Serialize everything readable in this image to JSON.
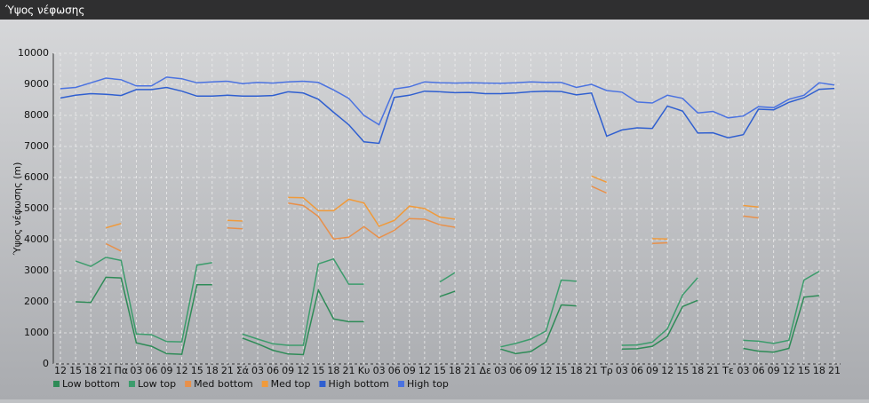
{
  "chart_data": {
    "type": "line",
    "title": "Ύψος νέφωσης",
    "y_label": "Ύψος νέφωσης (m)",
    "categories": [
      "12",
      "15",
      "18",
      "21",
      "Πα",
      "03",
      "06",
      "09",
      "12",
      "15",
      "18",
      "21",
      "Σά",
      "03",
      "06",
      "09",
      "12",
      "15",
      "18",
      "21",
      "Κυ",
      "03",
      "06",
      "09",
      "12",
      "15",
      "18",
      "21",
      "Δε",
      "03",
      "06",
      "09",
      "12",
      "15",
      "18",
      "21",
      "Τρ",
      "03",
      "06",
      "09",
      "12",
      "15",
      "18",
      "21",
      "Τε",
      "03",
      "06",
      "09",
      "12",
      "15",
      "18",
      "21"
    ],
    "ylim": [
      0,
      10000
    ],
    "yticks": [
      0,
      1000,
      2000,
      3000,
      4000,
      5000,
      6000,
      7000,
      8000,
      9000,
      10000
    ],
    "grid": true,
    "series": [
      {
        "name": "Low bottom",
        "color": "#2e8b57",
        "values": [
          null,
          2000,
          1980,
          2790,
          2770,
          680,
          570,
          330,
          310,
          2550,
          2550,
          null,
          830,
          650,
          440,
          320,
          300,
          2380,
          1450,
          1360,
          1360,
          null,
          null,
          null,
          null,
          2170,
          2340,
          null,
          null,
          480,
          330,
          400,
          710,
          1900,
          1870,
          null,
          null,
          480,
          490,
          570,
          890,
          1850,
          2050,
          null,
          null,
          500,
          410,
          380,
          500,
          2150,
          2200,
          null
        ]
      },
      {
        "name": "Low top",
        "color": "#3c9c6c",
        "values": [
          null,
          3310,
          3140,
          3430,
          3330,
          970,
          940,
          720,
          710,
          3180,
          3260,
          null,
          960,
          800,
          650,
          600,
          600,
          3220,
          3380,
          2570,
          2570,
          null,
          null,
          null,
          null,
          2640,
          2940,
          null,
          null,
          550,
          660,
          800,
          1060,
          2700,
          2660,
          null,
          null,
          600,
          610,
          700,
          1130,
          2220,
          2780,
          null,
          null,
          760,
          730,
          660,
          760,
          2700,
          2980,
          null
        ]
      },
      {
        "name": "Med bottom",
        "color": "#e8904a",
        "values": [
          null,
          null,
          null,
          3870,
          3630,
          null,
          null,
          null,
          null,
          null,
          null,
          4380,
          4350,
          null,
          null,
          5180,
          5100,
          4750,
          4020,
          4080,
          4420,
          4060,
          4300,
          4680,
          4660,
          4480,
          4400,
          null,
          null,
          null,
          null,
          null,
          null,
          null,
          null,
          5720,
          5500,
          null,
          null,
          3880,
          3900,
          null,
          null,
          null,
          null,
          4760,
          4700,
          null,
          null,
          null,
          null,
          null
        ]
      },
      {
        "name": "Med top",
        "color": "#f09a3a",
        "values": [
          null,
          null,
          null,
          4380,
          4520,
          null,
          null,
          null,
          null,
          null,
          null,
          4620,
          4600,
          null,
          null,
          5360,
          5350,
          4930,
          4930,
          5300,
          5180,
          4430,
          4620,
          5080,
          5000,
          4730,
          4660,
          null,
          null,
          null,
          null,
          null,
          null,
          null,
          null,
          6050,
          5850,
          null,
          null,
          4030,
          4020,
          null,
          null,
          null,
          null,
          5100,
          5050,
          null,
          null,
          null,
          null,
          null
        ]
      },
      {
        "name": "High bottom",
        "color": "#2f5fd0",
        "values": [
          8560,
          8650,
          8700,
          8680,
          8640,
          8830,
          8830,
          8900,
          8780,
          8620,
          8620,
          8650,
          8620,
          8620,
          8640,
          8760,
          8720,
          8520,
          8100,
          7700,
          7150,
          7100,
          8580,
          8650,
          8780,
          8760,
          8730,
          8740,
          8700,
          8700,
          8720,
          8760,
          8780,
          8770,
          8660,
          8720,
          7330,
          7530,
          7600,
          7580,
          8300,
          8140,
          7430,
          7440,
          7280,
          7380,
          8200,
          8180,
          8420,
          8570,
          8840,
          8870
        ]
      },
      {
        "name": "High top",
        "color": "#4a72e0",
        "values": [
          8860,
          8900,
          9050,
          9200,
          9150,
          8950,
          8950,
          9230,
          9180,
          9050,
          9080,
          9100,
          9020,
          9060,
          9040,
          9080,
          9100,
          9060,
          8820,
          8550,
          8000,
          7700,
          8850,
          8920,
          9080,
          9050,
          9040,
          9050,
          9040,
          9030,
          9050,
          9080,
          9060,
          9060,
          8900,
          9000,
          8800,
          8750,
          8430,
          8400,
          8650,
          8550,
          8080,
          8130,
          7920,
          7980,
          8280,
          8250,
          8520,
          8650,
          9050,
          8980
        ]
      }
    ]
  }
}
